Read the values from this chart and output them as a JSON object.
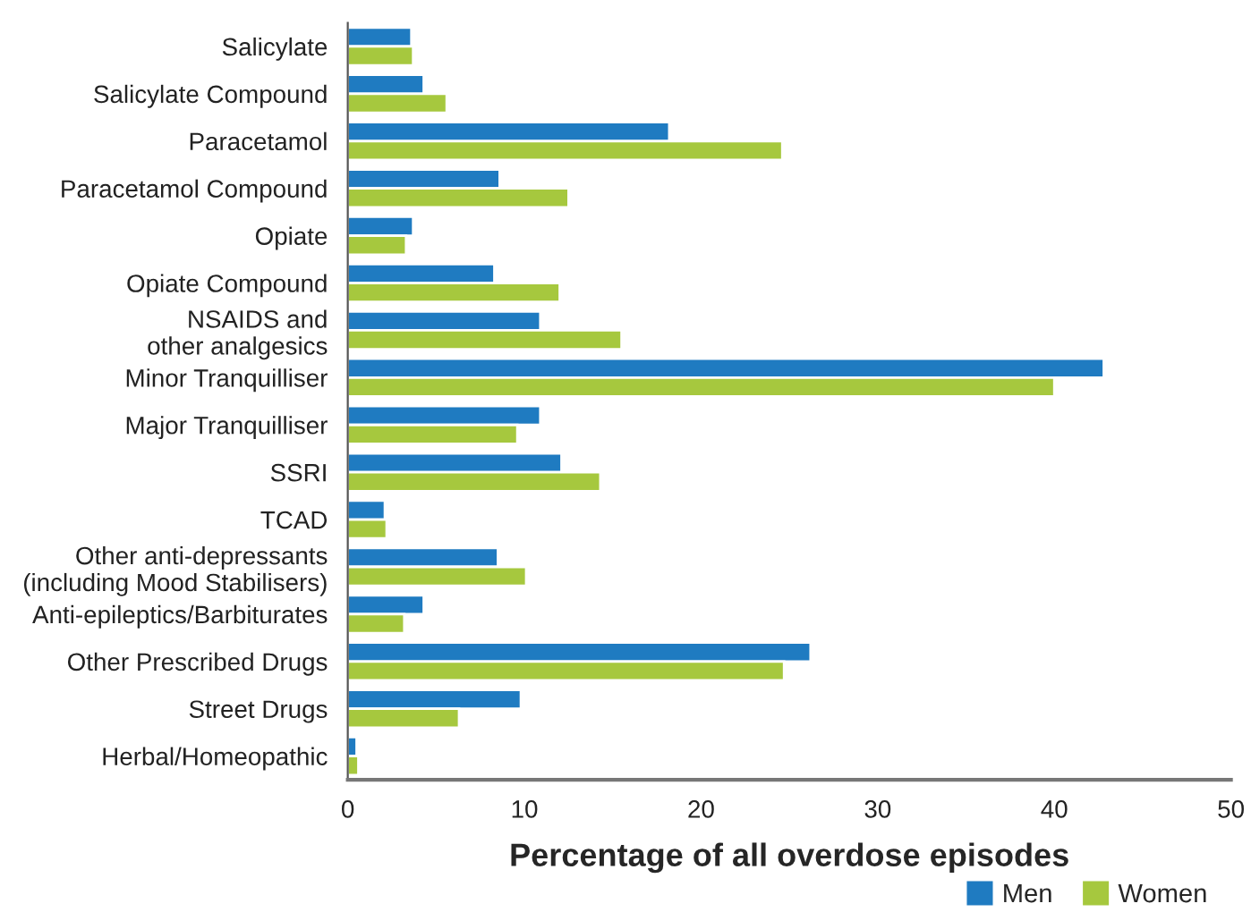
{
  "chart_data": {
    "type": "bar",
    "orientation": "horizontal",
    "xlabel": "Percentage of all overdose episodes",
    "categories": [
      "Salicylate",
      "Salicylate Compound",
      "Paracetamol",
      "Paracetamol Compound",
      "Opiate",
      "Opiate Compound",
      "NSAIDS and\nother analgesics",
      "Minor Tranquilliser",
      "Major Tranquilliser",
      "SSRI",
      "TCAD",
      "Other anti-depressants\n(including Mood Stabilisers)",
      "Anti-epileptics/Barbiturates",
      "Other Prescribed Drugs",
      "Street Drugs",
      "Herbal/Homeopathic"
    ],
    "series": [
      {
        "name": "Men",
        "color": "#1f7bc1",
        "values": [
          3.6,
          4.3,
          18.2,
          8.6,
          3.7,
          8.3,
          10.9,
          42.8,
          10.9,
          12.1,
          2.1,
          8.5,
          4.3,
          26.2,
          9.8,
          0.5
        ]
      },
      {
        "name": "Women",
        "color": "#a6c83e",
        "values": [
          3.7,
          5.6,
          24.6,
          12.5,
          3.3,
          12.0,
          15.5,
          40.0,
          9.6,
          14.3,
          2.2,
          10.1,
          3.2,
          24.7,
          6.3,
          0.6
        ]
      }
    ],
    "xlim": [
      0,
      50
    ],
    "xticks": [
      0,
      10,
      20,
      30,
      40,
      50
    ],
    "grid": false,
    "legend": "bottom right"
  }
}
